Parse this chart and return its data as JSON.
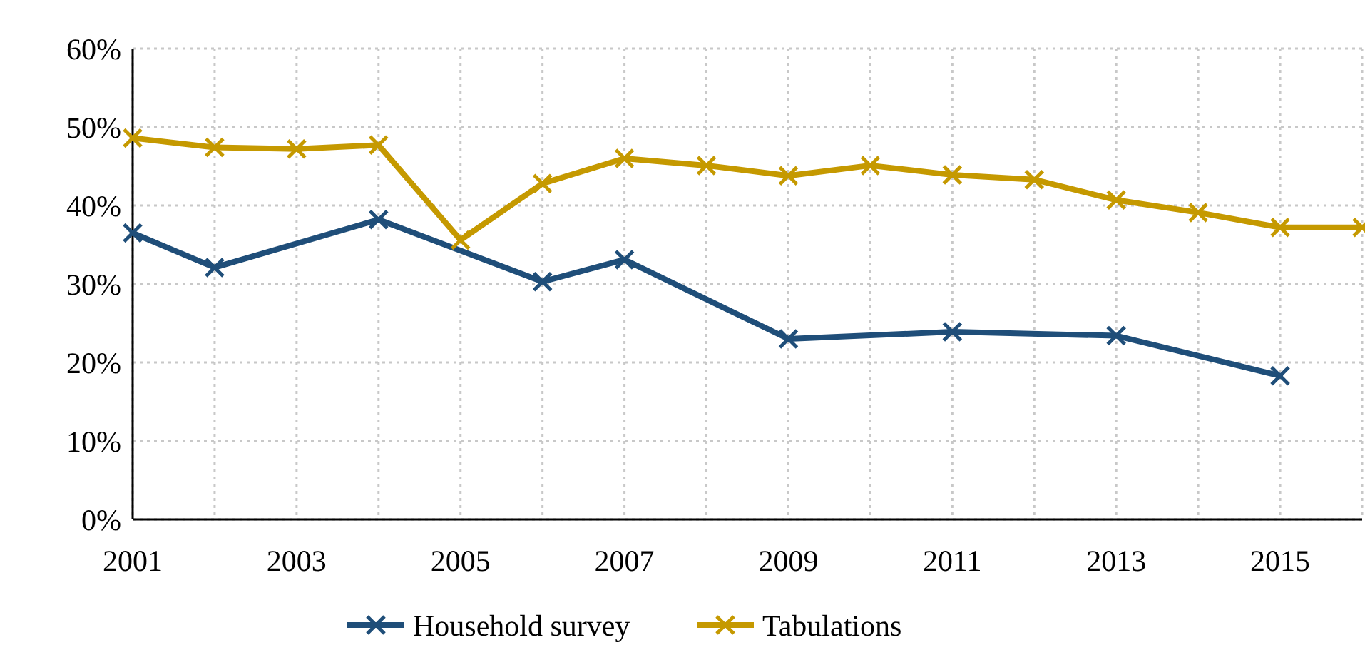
{
  "chart_data": {
    "type": "line",
    "xlim": [
      2001,
      2016
    ],
    "xticks": [
      2001,
      {
        "value": 2002,
        "label": null
      },
      2003,
      {
        "value": 2004,
        "label": null
      },
      2005,
      {
        "value": 2006,
        "label": null
      },
      2007,
      {
        "value": 2008,
        "label": null
      },
      2009,
      {
        "value": 2010,
        "label": null
      },
      2011,
      {
        "value": 2012,
        "label": null
      },
      2013,
      {
        "value": 2014,
        "label": null
      },
      2015,
      {
        "value": 2016,
        "label": null
      }
    ],
    "ylim": [
      0,
      60
    ],
    "yticks": [
      {
        "value": 0,
        "label": "0%"
      },
      {
        "value": 10,
        "label": "10%"
      },
      {
        "value": 20,
        "label": "20%"
      },
      {
        "value": 30,
        "label": "30%"
      },
      {
        "value": 40,
        "label": "40%"
      },
      {
        "value": 50,
        "label": "50%"
      },
      {
        "value": 60,
        "label": "60%"
      }
    ],
    "grid": true,
    "legend": "bottom",
    "marker": "cross",
    "line_style": "solid",
    "series": [
      {
        "name": "Household survey",
        "color": "#1f4e79",
        "x": [
          2001,
          2002,
          2004,
          2006,
          2007,
          2009,
          2011,
          2013,
          2015
        ],
        "values": [
          36.5,
          32.1,
          38.2,
          30.3,
          33.1,
          23.0,
          23.9,
          23.4,
          18.3
        ]
      },
      {
        "name": "Tabulations",
        "color": "#c59900",
        "x": [
          2001,
          2002,
          2003,
          2004,
          2005,
          2006,
          2007,
          2008,
          2009,
          2010,
          2011,
          2012,
          2013,
          2014,
          2015,
          2016
        ],
        "values": [
          48.6,
          47.4,
          47.2,
          47.7,
          35.6,
          42.8,
          46.0,
          45.1,
          43.8,
          45.1,
          43.9,
          43.3,
          40.7,
          39.1,
          37.2,
          37.2
        ]
      }
    ]
  }
}
